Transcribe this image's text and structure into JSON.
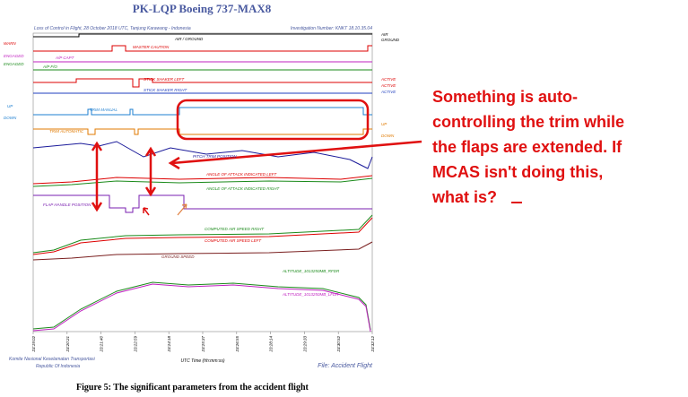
{
  "figure": {
    "title": "PK-LQP Boeing 737-MAX8",
    "subtitle": "Loss of Control in Flight, 28 October 2018 UTC, Tanjung Karawang - Indonesia",
    "investigation": "Investigation Number: KNKT 18.10.35.04",
    "left_labels": [
      "WARN",
      "ENGAGED",
      "ENGAGED",
      "UP",
      "DOWN"
    ],
    "right_labels": [
      "AIR",
      "GROUND",
      "ACTIVE",
      "ACTIVE",
      "ACTIVE",
      "UP",
      "DOWN"
    ],
    "traces": [
      "AIR / GROUND",
      "MASTER CAUTION",
      "A/P CAPT",
      "A/P F/O",
      "STICK SHAKER LEFT",
      "STICK SHAKER RIGHT",
      "TRIM MANUAL",
      "TRIM AUTOMATIC",
      "PITCH TRIM POSITION",
      "ANGLE OF ATTACK INDICATED LEFT",
      "ANGLE OF ATTACK INDICATED RIGHT",
      "FLAP HANDLE POSITION",
      "COMPUTED AIR SPEED RIGHT",
      "COMPUTED AIR SPEED LEFT",
      "GROUND SPEED",
      "ALTITUDE_1013250MB_RFDR",
      "ALTITUDE_1013250MB_LFDR"
    ],
    "x_ticks": [
      "23:19:02",
      "23:20:21",
      "23:21:40",
      "23:22:59",
      "23:24:18",
      "23:25:37",
      "23:26:55",
      "23:28:14",
      "23:29:33",
      "23:30:52",
      "23:32:12"
    ],
    "x_label": "UTC Time (hh:mm:ss)",
    "footer_left": [
      "Komite Nasional Keselamatan Transportasi",
      "Republic Of Indonesia"
    ],
    "footer_right": "File: Accident Flight",
    "caption": "Figure 5: The significant parameters from the accident flight"
  },
  "annotation": {
    "lines": [
      "Something is auto-",
      "controlling the trim while",
      "the flaps are extended.   If",
      "MCAS isn't doing this,",
      "what is?"
    ]
  }
}
